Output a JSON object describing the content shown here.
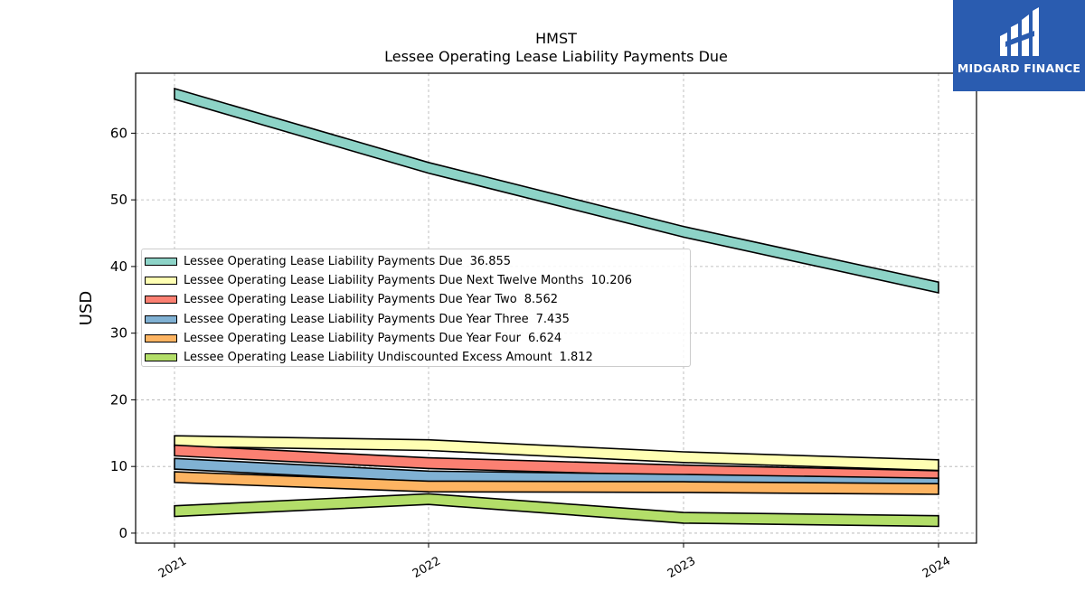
{
  "brand": {
    "name": "MIDGARD FINANCE",
    "logo_icon": "midgard-logo-icon",
    "color": "#2a5cb0"
  },
  "chart_data": {
    "type": "area",
    "title": "HMST",
    "subtitle": "Lessee Operating Lease Liability Payments Due",
    "xlabel": "",
    "ylabel": "USD",
    "categories": [
      "2021",
      "2022",
      "2023",
      "2024"
    ],
    "ylim": [
      -1.5,
      69
    ],
    "yticks": [
      0,
      10,
      20,
      30,
      40,
      50,
      60
    ],
    "grid": true,
    "legend_position": "center-left",
    "series": [
      {
        "name": "Lessee Operating Lease Liability Payments Due",
        "legend_value": "36.855",
        "values": [
          65.9,
          54.8,
          45.2,
          36.855
        ],
        "color": "#8dd3c7"
      },
      {
        "name": "Lessee Operating Lease Liability Payments Due Next Twelve Months",
        "legend_value": "10.206",
        "values": [
          13.8,
          13.2,
          11.4,
          10.206
        ],
        "color": "#ffffb3"
      },
      {
        "name": "Lessee Operating Lease Liability Payments Due Year Two",
        "legend_value": "8.562",
        "values": [
          12.4,
          10.5,
          9.4,
          8.562
        ],
        "color": "#fb8072"
      },
      {
        "name": "Lessee Operating Lease Liability Payments Due Year Three",
        "legend_value": "7.435",
        "values": [
          10.4,
          8.5,
          8.0,
          7.435
        ],
        "color": "#80b1d3"
      },
      {
        "name": "Lessee Operating Lease Liability Payments Due Year Four",
        "legend_value": "6.624",
        "values": [
          8.4,
          7.0,
          6.9,
          6.624
        ],
        "color": "#fdb462"
      },
      {
        "name": "Lessee Operating Lease Liability Undiscounted Excess Amount",
        "legend_value": "1.812",
        "values": [
          3.3,
          5.1,
          2.3,
          1.812
        ],
        "color": "#b3de69"
      }
    ]
  }
}
